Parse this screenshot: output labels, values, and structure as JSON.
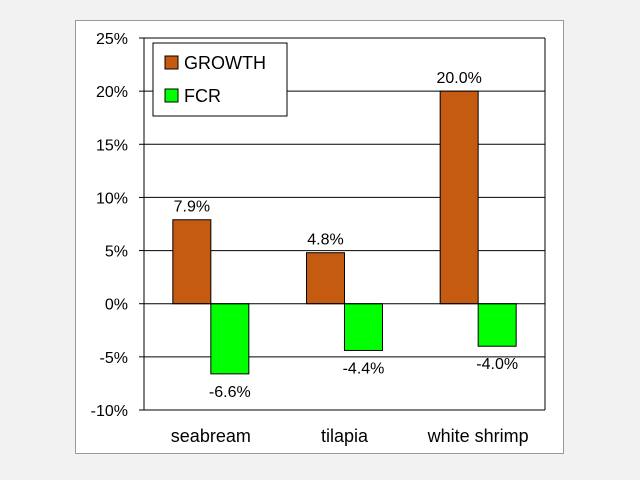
{
  "chart_data": {
    "type": "bar",
    "categories": [
      "seabream",
      "tilapia",
      "white shrimp"
    ],
    "series": [
      {
        "name": "GROWTH",
        "color": "#c55a11",
        "values": [
          7.9,
          4.8,
          20.0
        ],
        "labels": [
          "7.9%",
          "4.8%",
          "20.0%"
        ]
      },
      {
        "name": "FCR",
        "color": "#00ff00",
        "values": [
          -6.6,
          -4.4,
          -4.0
        ],
        "labels": [
          "-6.6%",
          "-4.4%",
          "-4.0%"
        ]
      }
    ],
    "ylim": [
      -10,
      25
    ],
    "yticks": [
      -10,
      -5,
      0,
      5,
      10,
      15,
      20,
      25
    ],
    "ytick_labels": [
      "-10%",
      "-5%",
      "0%",
      "5%",
      "10%",
      "15%",
      "20%",
      "25%"
    ],
    "grid": true,
    "legend_position": "top-left",
    "title": "",
    "xlabel": "",
    "ylabel": ""
  }
}
